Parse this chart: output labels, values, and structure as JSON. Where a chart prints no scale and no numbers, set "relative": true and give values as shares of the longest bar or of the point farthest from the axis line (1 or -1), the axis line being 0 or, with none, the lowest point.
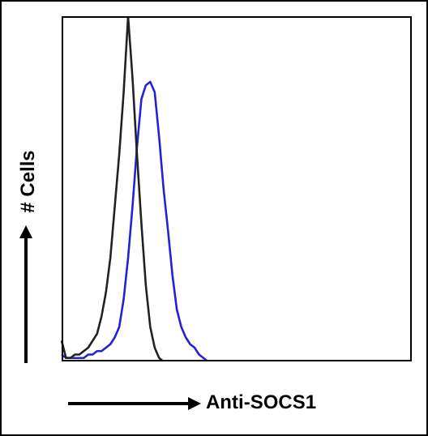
{
  "chart_data": {
    "type": "line",
    "relative": true,
    "xlabel": "Anti-SOCS1",
    "ylabel": "# Cells",
    "legend": false,
    "marker": "none",
    "categories": [
      null,
      null,
      null,
      null,
      null,
      null,
      null,
      null,
      null,
      null,
      null,
      null,
      null,
      null,
      null,
      null,
      null,
      null,
      null,
      null,
      null,
      null,
      null,
      null,
      null,
      null,
      null,
      null,
      null,
      null,
      null,
      null,
      null,
      null,
      null,
      null,
      null,
      null,
      null,
      null,
      null,
      null,
      null,
      null,
      null,
      null,
      null,
      null,
      null,
      null,
      null,
      null,
      null,
      null,
      null,
      null,
      null,
      null,
      null,
      null,
      null,
      null,
      null,
      null,
      null,
      null,
      null,
      null,
      null,
      null,
      null,
      null,
      null,
      null,
      null,
      null,
      null,
      null,
      null,
      null
    ],
    "series": [
      {
        "color": "#222222",
        "values": [
          0.06,
          0.01,
          0.01,
          0.02,
          0.02,
          0.03,
          0.04,
          0.06,
          0.08,
          0.13,
          0.2,
          0.3,
          0.45,
          0.6,
          0.78,
          1,
          0.82,
          0.6,
          0.4,
          0.22,
          0.1,
          0.04,
          0.01,
          0,
          null,
          null,
          null,
          null,
          null,
          null,
          null,
          null,
          null,
          null,
          null,
          null,
          null,
          null,
          null,
          null,
          null,
          null,
          null,
          null,
          null,
          null,
          null,
          null,
          null,
          null,
          null,
          null,
          null,
          null,
          null,
          null,
          null,
          null,
          null,
          null,
          null,
          null,
          null,
          null,
          null,
          null,
          null,
          null,
          null,
          null,
          null,
          null,
          null,
          null,
          null,
          null,
          null,
          null,
          null,
          null
        ]
      },
      {
        "color": "#2222d8",
        "values": [
          0.02,
          0.01,
          0.01,
          0.01,
          0.01,
          0.01,
          0.02,
          0.02,
          0.03,
          0.03,
          0.04,
          0.05,
          0.07,
          0.1,
          0.18,
          0.3,
          0.45,
          0.62,
          0.76,
          0.8,
          0.81,
          0.78,
          0.65,
          0.5,
          0.38,
          0.25,
          0.15,
          0.1,
          0.07,
          0.05,
          0.04,
          0.02,
          0.01,
          0,
          null,
          null,
          null,
          null,
          null,
          null,
          null,
          null,
          null,
          null,
          null,
          null,
          null,
          null,
          null,
          null,
          null,
          null,
          null,
          null,
          null,
          null,
          null,
          null,
          null,
          null,
          null,
          null,
          null,
          null,
          null,
          null,
          null,
          null,
          null,
          null,
          null,
          null,
          null,
          null,
          null,
          null,
          null,
          null,
          null,
          null
        ]
      }
    ]
  }
}
